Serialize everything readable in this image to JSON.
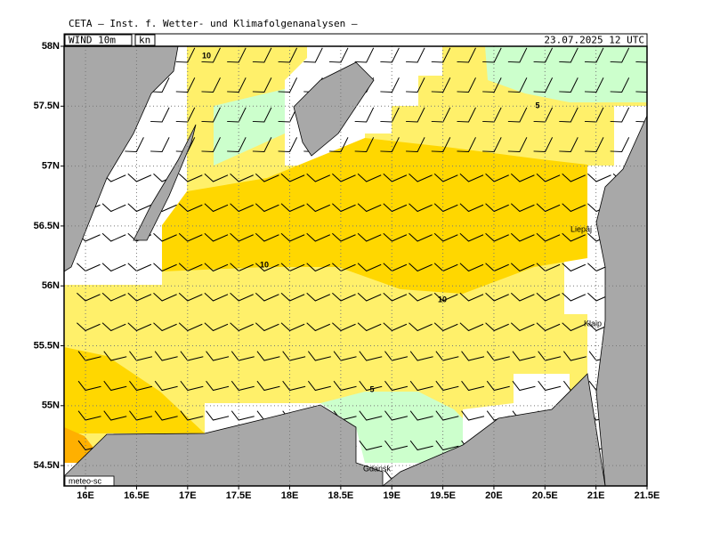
{
  "header": "CETA — Inst. f. Wetter- und Klimafolgenanalysen —",
  "title": "WIND_10m",
  "unit": "kn",
  "valid_time": "23.07.2025 12 UTC",
  "credit": "meteo-sc",
  "map": {
    "lonlim": [
      15.79,
      21.5
    ],
    "latlim": [
      54.33,
      58
    ],
    "lonticks": [
      {
        "value": 16,
        "label": "16E"
      },
      {
        "value": 16.5,
        "label": "16.5E"
      },
      {
        "value": 17,
        "label": "17E"
      },
      {
        "value": 17.5,
        "label": "17.5E"
      },
      {
        "value": 18,
        "label": "18E"
      },
      {
        "value": 18.5,
        "label": "18.5E"
      },
      {
        "value": 19,
        "label": "19E"
      },
      {
        "value": 19.5,
        "label": "19.5E"
      },
      {
        "value": 20,
        "label": "20E"
      },
      {
        "value": 20.5,
        "label": "20.5E"
      },
      {
        "value": 21,
        "label": "21E"
      },
      {
        "value": 21.5,
        "label": "21.5E"
      }
    ],
    "latticks": [
      {
        "value": 54.5,
        "label": "54.5N"
      },
      {
        "value": 55,
        "label": "55N"
      },
      {
        "value": 55.5,
        "label": "55.5N"
      },
      {
        "value": 56,
        "label": "56N"
      },
      {
        "value": 56.5,
        "label": "56.5N"
      },
      {
        "value": 57,
        "label": "57N"
      },
      {
        "value": 57.5,
        "label": "57.5N"
      },
      {
        "value": 58,
        "label": "58N"
      }
    ]
  },
  "contour_labels": [
    "10",
    "10",
    "10",
    "5",
    "5"
  ],
  "places": [
    "Liepāj",
    "Klaip",
    "Gdansk"
  ]
}
